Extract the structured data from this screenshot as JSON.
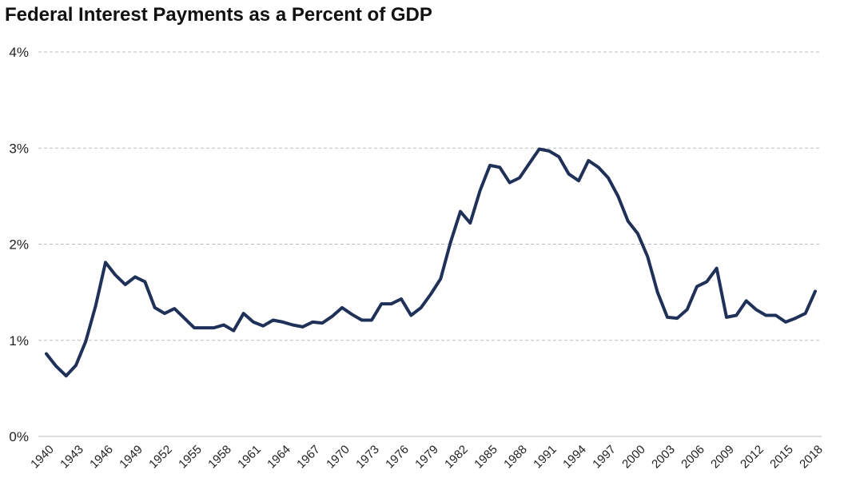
{
  "chart_data": {
    "type": "line",
    "title": "Federal Interest Payments as a Percent of GDP",
    "xlabel": "",
    "ylabel": "",
    "ylim": [
      0,
      4
    ],
    "y_ticks": [
      "0%",
      "1%",
      "2%",
      "3%",
      "4%"
    ],
    "x_tick_labels": [
      "1940",
      "1943",
      "1946",
      "1949",
      "1952",
      "1955",
      "1958",
      "1961",
      "1964",
      "1967",
      "1970",
      "1973",
      "1976",
      "1979",
      "1982",
      "1985",
      "1988",
      "1991",
      "1994",
      "1997",
      "2000",
      "2003",
      "2006",
      "2009",
      "2012",
      "2015",
      "2018"
    ],
    "grid": true,
    "grid_style": "dashed",
    "legend": "none",
    "line_color": "#1f3158",
    "x": [
      1940,
      1941,
      1942,
      1943,
      1944,
      1945,
      1946,
      1947,
      1948,
      1949,
      1950,
      1951,
      1952,
      1953,
      1954,
      1955,
      1956,
      1957,
      1958,
      1959,
      1960,
      1961,
      1962,
      1963,
      1964,
      1965,
      1966,
      1967,
      1968,
      1969,
      1970,
      1971,
      1972,
      1973,
      1974,
      1975,
      1976,
      1977,
      1978,
      1979,
      1980,
      1981,
      1982,
      1983,
      1984,
      1985,
      1986,
      1987,
      1988,
      1989,
      1990,
      1991,
      1992,
      1993,
      1994,
      1995,
      1996,
      1997,
      1998,
      1999,
      2000,
      2001,
      2002,
      2003,
      2004,
      2005,
      2006,
      2007,
      2008,
      2009,
      2010,
      2011,
      2012,
      2013,
      2014,
      2015,
      2016,
      2017,
      2018
    ],
    "values": [
      0.86,
      0.73,
      0.63,
      0.74,
      0.99,
      1.36,
      1.81,
      1.68,
      1.58,
      1.66,
      1.61,
      1.34,
      1.28,
      1.33,
      1.23,
      1.13,
      1.13,
      1.13,
      1.16,
      1.1,
      1.28,
      1.19,
      1.15,
      1.21,
      1.19,
      1.16,
      1.14,
      1.19,
      1.18,
      1.25,
      1.34,
      1.27,
      1.21,
      1.21,
      1.38,
      1.38,
      1.43,
      1.26,
      1.34,
      1.48,
      1.64,
      2.02,
      2.34,
      2.22,
      2.56,
      2.82,
      2.8,
      2.64,
      2.69,
      2.84,
      2.99,
      2.97,
      2.91,
      2.73,
      2.66,
      2.87,
      2.8,
      2.69,
      2.5,
      2.24,
      2.11,
      1.87,
      1.5,
      1.24,
      1.23,
      1.32,
      1.56,
      1.61,
      1.75,
      1.24,
      1.26,
      1.41,
      1.32,
      1.26,
      1.26,
      1.19,
      1.23,
      1.28,
      1.51
    ]
  }
}
